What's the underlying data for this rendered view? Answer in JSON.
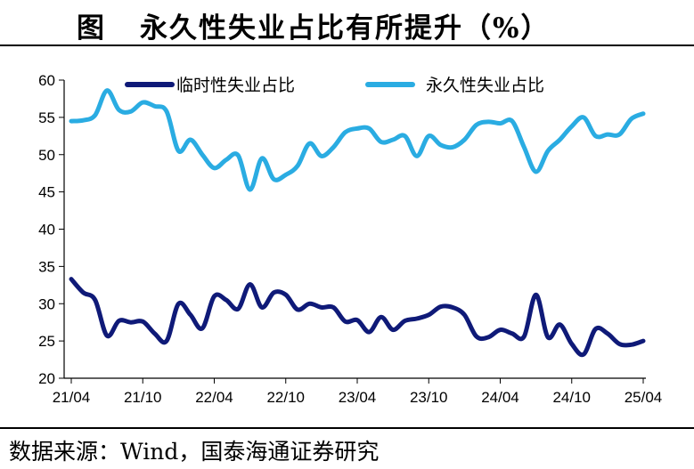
{
  "header": {
    "label": "图",
    "title": "永久性失业占比有所提升（%）"
  },
  "footer": {
    "source": "数据来源：Wind，国泰海通证券研究"
  },
  "colors": {
    "temporary": "#0F1A78",
    "permanent": "#2AACE2",
    "axis": "#000000"
  },
  "chart_data": {
    "type": "line",
    "title": "永久性失业占比有所提升（%）",
    "xlabel": "",
    "ylabel": "",
    "ylim": [
      20,
      60
    ],
    "yticks": [
      20,
      25,
      30,
      35,
      40,
      45,
      50,
      55,
      60
    ],
    "xtick_labels": [
      "21/04",
      "21/10",
      "22/04",
      "22/10",
      "23/04",
      "23/10",
      "24/04",
      "24/10",
      "25/04"
    ],
    "legend_position": "top",
    "grid": false,
    "x": [
      "21/04",
      "21/05",
      "21/06",
      "21/07",
      "21/08",
      "21/09",
      "21/10",
      "21/11",
      "21/12",
      "22/01",
      "22/02",
      "22/03",
      "22/04",
      "22/05",
      "22/06",
      "22/07",
      "22/08",
      "22/09",
      "22/10",
      "22/11",
      "22/12",
      "23/01",
      "23/02",
      "23/03",
      "23/04",
      "23/05",
      "23/06",
      "23/07",
      "23/08",
      "23/09",
      "23/10",
      "23/11",
      "23/12",
      "24/01",
      "24/02",
      "24/03",
      "24/04",
      "24/05",
      "24/06",
      "24/07",
      "24/08",
      "24/09",
      "24/10",
      "24/11",
      "24/12",
      "25/01",
      "25/02",
      "25/03",
      "25/04"
    ],
    "series": [
      {
        "name": "临时性失业占比",
        "values": [
          33.3,
          31.5,
          30.5,
          25.7,
          27.7,
          27.5,
          27.6,
          26.0,
          25.0,
          30.0,
          28.5,
          26.7,
          31.0,
          30.5,
          29.3,
          32.6,
          29.5,
          31.5,
          31.2,
          29.2,
          30.0,
          29.5,
          29.5,
          27.6,
          27.8,
          26.2,
          28.2,
          26.5,
          27.7,
          28.0,
          28.5,
          29.6,
          29.5,
          28.5,
          25.6,
          25.5,
          26.5,
          26.0,
          25.6,
          31.2,
          25.5,
          27.2,
          24.6,
          23.2,
          26.6,
          26.0,
          24.6,
          24.5,
          25.0
        ]
      },
      {
        "name": "永久性失业占比",
        "values": [
          54.5,
          54.6,
          55.3,
          58.6,
          56.0,
          55.8,
          57.0,
          56.5,
          55.8,
          50.5,
          52.0,
          50.0,
          48.2,
          49.3,
          49.9,
          45.3,
          49.5,
          46.7,
          47.3,
          48.5,
          51.5,
          49.8,
          51.0,
          53.0,
          53.5,
          53.5,
          51.7,
          52.0,
          52.5,
          49.8,
          52.5,
          51.3,
          51.0,
          52.0,
          54.0,
          54.4,
          54.2,
          54.5,
          51.0,
          47.7,
          50.5,
          52.0,
          53.8,
          55.0,
          52.5,
          52.7,
          52.7,
          54.8,
          55.5
        ]
      }
    ]
  }
}
